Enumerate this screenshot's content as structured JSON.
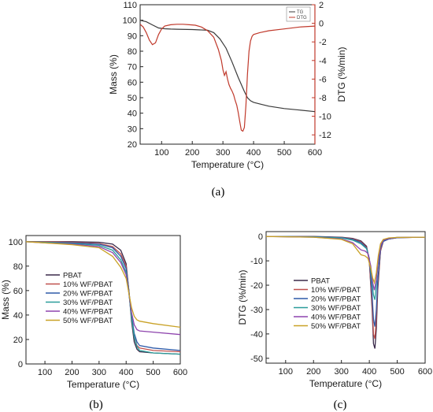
{
  "chart_data": [
    {
      "panel": "(a)",
      "type": "line",
      "xlabel": "Temperature (°C)",
      "ylabel_left": "Mass (%)",
      "ylabel_right": "DTG (%/min)",
      "xlim": [
        30,
        600
      ],
      "ylim_left": [
        20,
        110
      ],
      "ylim_right": [
        -13,
        2
      ],
      "xticks": [
        100,
        200,
        300,
        400,
        500,
        600
      ],
      "yticks_left": [
        20,
        30,
        40,
        50,
        60,
        70,
        80,
        90,
        100,
        110
      ],
      "yticks_right": [
        2,
        0,
        -2,
        -4,
        -6,
        -8,
        -10,
        -12
      ],
      "legend": "top-right",
      "series": [
        {
          "name": "TG",
          "axis": "left",
          "color": "#3a3a3a",
          "x": [
            30,
            50,
            70,
            90,
            110,
            130,
            150,
            200,
            250,
            270,
            290,
            310,
            330,
            350,
            370,
            380,
            390,
            400,
            420,
            450,
            500,
            550,
            600
          ],
          "y": [
            100,
            99,
            97,
            95,
            94.5,
            94.3,
            94.2,
            94,
            93.5,
            92,
            88,
            82,
            73,
            63,
            54,
            50,
            48,
            47,
            46,
            44.5,
            43,
            42,
            41
          ]
        },
        {
          "name": "DTG",
          "axis": "right",
          "color": "#c0392b",
          "x": [
            30,
            40,
            50,
            60,
            70,
            80,
            90,
            100,
            110,
            130,
            150,
            170,
            190,
            210,
            230,
            250,
            270,
            285,
            295,
            300,
            305,
            310,
            315,
            320,
            325,
            330,
            335,
            340,
            345,
            350,
            355,
            360,
            365,
            370,
            375,
            380,
            385,
            390,
            395,
            400,
            420,
            450,
            500,
            550,
            600
          ],
          "y": [
            -0.1,
            -0.4,
            -1.0,
            -1.8,
            -2.3,
            -2.1,
            -1.2,
            -0.6,
            -0.3,
            -0.15,
            -0.1,
            -0.1,
            -0.15,
            -0.2,
            -0.4,
            -0.8,
            -1.5,
            -2.8,
            -4.0,
            -5.0,
            -5.6,
            -5.2,
            -6.0,
            -6.6,
            -7.0,
            -7.3,
            -7.7,
            -8.3,
            -8.8,
            -9.6,
            -10.6,
            -11.5,
            -11.6,
            -11.2,
            -8.8,
            -5.5,
            -3.0,
            -1.9,
            -1.4,
            -1.2,
            -1.0,
            -0.8,
            -0.6,
            -0.4,
            -0.3
          ]
        }
      ]
    },
    {
      "panel": "(b)",
      "type": "line",
      "xlabel": "Temperature (°C)",
      "ylabel": "Mass (%)",
      "xlim": [
        30,
        600
      ],
      "ylim": [
        0,
        105
      ],
      "xticks": [
        100,
        200,
        300,
        400,
        500,
        600
      ],
      "yticks": [
        0,
        20,
        40,
        60,
        80,
        100
      ],
      "legend": "center-left",
      "series": [
        {
          "name": "PBAT",
          "color": "#3b2a4a",
          "x": [
            30,
            100,
            200,
            300,
            350,
            380,
            400,
            410,
            420,
            430,
            440,
            450,
            500,
            600
          ],
          "y": [
            100,
            100,
            100,
            99.5,
            98,
            93,
            82,
            60,
            35,
            18,
            12,
            10,
            9,
            8
          ]
        },
        {
          "name": "10% WF/PBAT",
          "color": "#c0504d",
          "x": [
            30,
            100,
            200,
            300,
            350,
            380,
            400,
            410,
            420,
            430,
            440,
            450,
            500,
            600
          ],
          "y": [
            100,
            100,
            99.5,
            98.5,
            96,
            90,
            80,
            60,
            38,
            22,
            15,
            13,
            11,
            10
          ]
        },
        {
          "name": "20% WF/PBAT",
          "color": "#2e5aa8",
          "x": [
            30,
            100,
            200,
            300,
            350,
            380,
            400,
            410,
            420,
            430,
            440,
            450,
            500,
            600
          ],
          "y": [
            100,
            99.5,
            99,
            98,
            95,
            88,
            78,
            60,
            40,
            25,
            18,
            15,
            13,
            11
          ]
        },
        {
          "name": "30% WF/PBAT",
          "color": "#2a9d9a",
          "x": [
            30,
            100,
            200,
            300,
            350,
            380,
            400,
            410,
            420,
            430,
            440,
            450,
            500,
            600
          ],
          "y": [
            100,
            99.5,
            98.5,
            97,
            93,
            85,
            75,
            58,
            38,
            22,
            14,
            11,
            9,
            8
          ]
        },
        {
          "name": "40% WF/PBAT",
          "color": "#8e44ad",
          "x": [
            30,
            100,
            200,
            300,
            350,
            380,
            400,
            410,
            420,
            430,
            440,
            450,
            500,
            600
          ],
          "y": [
            100,
            99,
            98,
            96,
            91,
            83,
            73,
            58,
            42,
            32,
            28,
            27,
            26,
            24
          ]
        },
        {
          "name": "50% WF/PBAT",
          "color": "#c9a227",
          "x": [
            30,
            100,
            200,
            300,
            350,
            380,
            400,
            410,
            420,
            430,
            440,
            450,
            500,
            600
          ],
          "y": [
            100,
            99,
            97.5,
            95,
            88,
            79,
            70,
            58,
            46,
            39,
            36,
            35,
            33,
            30
          ]
        }
      ]
    },
    {
      "panel": "(c)",
      "type": "line",
      "xlabel": "Temperature (°C)",
      "ylabel": "DTG (%/min)",
      "xlim": [
        30,
        600
      ],
      "ylim": [
        -52,
        2
      ],
      "xticks": [
        100,
        200,
        300,
        400,
        500,
        600
      ],
      "yticks": [
        0,
        -10,
        -20,
        -30,
        -40,
        -50
      ],
      "legend": "center-left",
      "series": [
        {
          "name": "PBAT",
          "color": "#3b2a4a",
          "x": [
            30,
            200,
            300,
            340,
            370,
            390,
            400,
            410,
            415,
            420,
            425,
            430,
            440,
            450,
            470,
            500,
            600
          ],
          "y": [
            0,
            0,
            -0.3,
            -0.8,
            -1.8,
            -4,
            -10,
            -30,
            -44,
            -46,
            -38,
            -22,
            -6,
            -2,
            -1,
            -0.5,
            -0.3
          ]
        },
        {
          "name": "10% WF/PBAT",
          "color": "#c0504d",
          "x": [
            30,
            200,
            300,
            340,
            370,
            390,
            400,
            410,
            415,
            420,
            425,
            430,
            440,
            450,
            470,
            500,
            600
          ],
          "y": [
            0,
            -0.1,
            -0.4,
            -1,
            -2.2,
            -4.5,
            -10,
            -28,
            -40,
            -42,
            -34,
            -20,
            -6,
            -2,
            -1,
            -0.5,
            -0.3
          ]
        },
        {
          "name": "20% WF/PBAT",
          "color": "#2e5aa8",
          "x": [
            30,
            200,
            300,
            340,
            370,
            390,
            400,
            410,
            415,
            420,
            425,
            430,
            440,
            450,
            470,
            500,
            600
          ],
          "y": [
            0,
            -0.1,
            -0.5,
            -1.2,
            -2.5,
            -4.8,
            -9,
            -24,
            -34,
            -37,
            -30,
            -18,
            -5,
            -2,
            -1,
            -0.5,
            -0.3
          ]
        },
        {
          "name": "30% WF/PBAT",
          "color": "#2a9d9a",
          "x": [
            30,
            200,
            300,
            340,
            370,
            390,
            400,
            410,
            415,
            420,
            425,
            430,
            440,
            450,
            470,
            500,
            600
          ],
          "y": [
            0,
            -0.2,
            -0.6,
            -1.5,
            -3,
            -5,
            -9,
            -19,
            -24,
            -26,
            -20,
            -12,
            -4,
            -1.5,
            -0.8,
            -0.4,
            -0.3
          ]
        },
        {
          "name": "40% WF/PBAT",
          "color": "#8e44ad",
          "x": [
            30,
            200,
            300,
            340,
            360,
            370,
            385,
            395,
            405,
            412,
            418,
            425,
            432,
            440,
            450,
            470,
            500,
            600
          ],
          "y": [
            0,
            -0.3,
            -1,
            -2.5,
            -4.5,
            -5.5,
            -6,
            -7,
            -12,
            -19,
            -22,
            -18,
            -10,
            -4,
            -1.5,
            -0.8,
            -0.4,
            -0.3
          ]
        },
        {
          "name": "50% WF/PBAT",
          "color": "#c9a227",
          "x": [
            30,
            200,
            300,
            340,
            360,
            370,
            385,
            395,
            405,
            412,
            418,
            425,
            432,
            440,
            450,
            470,
            500,
            600
          ],
          "y": [
            0,
            -0.3,
            -1.2,
            -3,
            -6,
            -7.5,
            -8,
            -9,
            -13,
            -17,
            -19,
            -15,
            -8,
            -3,
            -1.2,
            -0.6,
            -0.4,
            -0.3
          ]
        }
      ]
    }
  ],
  "panels": {
    "a": {
      "letter": "(a)"
    },
    "b": {
      "letter": "(b)"
    },
    "c": {
      "letter": "(c)"
    }
  }
}
